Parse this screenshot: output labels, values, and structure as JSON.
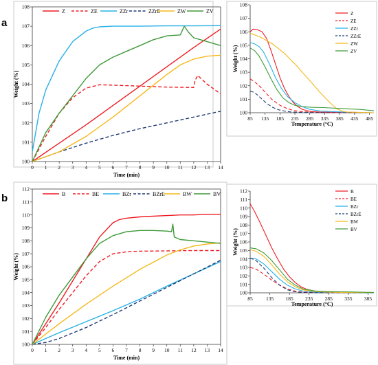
{
  "panels": {
    "a": "a",
    "b": "b"
  },
  "colors": {
    "red": "#ee1c24",
    "cyan": "#27b0e6",
    "navy": "#1f3a70",
    "yellow": "#f5b81a",
    "green": "#3e9a3a"
  },
  "chart_data": [
    {
      "id": "a_main",
      "type": "line",
      "xlabel": "Time (min)",
      "ylabel": "Weight (%)",
      "xlim": [
        0,
        14
      ],
      "ylim": [
        100,
        108
      ],
      "xticks": [
        "0",
        "1",
        "2",
        "3",
        "4",
        "5",
        "6",
        "7",
        "8",
        "9",
        "10",
        "11",
        "12",
        "13",
        "14"
      ],
      "yticks": [
        "100",
        "101",
        "102",
        "103",
        "104",
        "105",
        "106",
        "107",
        "108"
      ],
      "grid": false,
      "legend": "top",
      "series": [
        {
          "name": "Z",
          "color": "#ee1c24",
          "dash": "solid",
          "x": [
            0,
            2,
            4,
            6,
            8,
            10,
            12,
            14
          ],
          "y": [
            100,
            100.95,
            101.9,
            102.9,
            103.9,
            104.9,
            105.9,
            106.85
          ]
        },
        {
          "name": "ZE",
          "color": "#ee1c24",
          "dash": "dashed",
          "x": [
            0,
            1,
            2,
            3,
            4,
            5,
            6,
            8,
            10,
            12,
            12.1,
            12.3,
            13,
            14
          ],
          "y": [
            100,
            101.3,
            102.5,
            103.3,
            103.8,
            103.97,
            103.95,
            103.9,
            103.85,
            103.83,
            104.2,
            104.45,
            104.0,
            103.5
          ]
        },
        {
          "name": "ZZr",
          "color": "#27b0e6",
          "dash": "solid",
          "x": [
            0,
            0.5,
            1,
            2,
            3,
            4,
            4.5,
            5,
            6,
            8,
            10,
            12,
            14
          ],
          "y": [
            100.5,
            102.5,
            103.7,
            105.2,
            106.2,
            106.75,
            106.9,
            106.97,
            107,
            107,
            107.02,
            107.02,
            107.03
          ]
        },
        {
          "name": "ZZrE",
          "color": "#1f3a70",
          "dash": "dashed",
          "x": [
            0,
            2,
            4,
            6,
            8,
            10,
            12,
            14
          ],
          "y": [
            100,
            100.5,
            100.95,
            101.35,
            101.7,
            102.0,
            102.3,
            102.6
          ]
        },
        {
          "name": "ZW",
          "color": "#f5b81a",
          "dash": "solid",
          "x": [
            0,
            2,
            4,
            6,
            8,
            10,
            11,
            12,
            13,
            14
          ],
          "y": [
            100,
            100.5,
            101.3,
            102.3,
            103.4,
            104.5,
            105.0,
            105.3,
            105.45,
            105.5
          ]
        },
        {
          "name": "ZV",
          "color": "#3e9a3a",
          "dash": "solid",
          "x": [
            0,
            1,
            2,
            3,
            4,
            5,
            6,
            7,
            8,
            9,
            10,
            11,
            11.3,
            11.6,
            12,
            13,
            14
          ],
          "y": [
            100,
            101.5,
            102.5,
            103.4,
            104.3,
            105.0,
            105.4,
            105.7,
            106.0,
            106.3,
            106.5,
            106.55,
            107.0,
            106.7,
            106.4,
            106.2,
            106.0
          ]
        }
      ]
    },
    {
      "id": "a_inset",
      "type": "line",
      "xlabel": "Temperature (°C)",
      "ylabel": "Weight (%)",
      "xlim": [
        85,
        500
      ],
      "ylim": [
        100,
        108
      ],
      "xticks": [
        "85",
        "135",
        "185",
        "235",
        "285",
        "335",
        "385",
        "435",
        "485"
      ],
      "yticks": [
        "100",
        "101",
        "102",
        "103",
        "104",
        "105",
        "106",
        "107",
        "108"
      ],
      "grid": false,
      "legend": "right",
      "series": [
        {
          "name": "Z",
          "color": "#ee1c24",
          "dash": "solid",
          "x": [
            85,
            95,
            110,
            125,
            140,
            155,
            170,
            185,
            200,
            215,
            230,
            245,
            260,
            285,
            320,
            400,
            500
          ],
          "y": [
            106,
            106.2,
            106.15,
            106.0,
            105.5,
            104.6,
            103.6,
            102.6,
            101.8,
            101.2,
            100.75,
            100.45,
            100.25,
            100.1,
            100.05,
            100.02,
            100
          ]
        },
        {
          "name": "ZE",
          "color": "#ee1c24",
          "dash": "dashed",
          "x": [
            85,
            100,
            120,
            140,
            160,
            185,
            210,
            235,
            260,
            300,
            350,
            500
          ],
          "y": [
            102.5,
            102.3,
            101.9,
            101.4,
            100.95,
            100.55,
            100.3,
            100.15,
            100.08,
            100.03,
            100,
            100
          ]
        },
        {
          "name": "ZZr",
          "color": "#27b0e6",
          "dash": "solid",
          "x": [
            85,
            100,
            115,
            130,
            150,
            170,
            190,
            210,
            235,
            260,
            285,
            320,
            400,
            500
          ],
          "y": [
            105.2,
            105.1,
            104.9,
            104.5,
            103.6,
            102.6,
            101.8,
            101.2,
            100.75,
            100.45,
            100.25,
            100.12,
            100.05,
            100
          ]
        },
        {
          "name": "ZZrE",
          "color": "#1f3a70",
          "dash": "dashed",
          "x": [
            85,
            100,
            120,
            140,
            160,
            180,
            200,
            220,
            250,
            285,
            350,
            500
          ],
          "y": [
            101.6,
            101.5,
            101.1,
            100.7,
            100.4,
            100.22,
            100.12,
            100.06,
            100.03,
            100.01,
            100,
            100
          ]
        },
        {
          "name": "ZW",
          "color": "#f5b81a",
          "dash": "solid",
          "x": [
            85,
            120,
            160,
            200,
            240,
            280,
            320,
            350,
            375,
            395,
            410,
            500
          ],
          "y": [
            105.9,
            105.6,
            105.1,
            104.4,
            103.5,
            102.5,
            101.5,
            100.8,
            100.3,
            100.1,
            100.05,
            100
          ]
        },
        {
          "name": "ZV",
          "color": "#3e9a3a",
          "dash": "solid",
          "x": [
            85,
            100,
            115,
            135,
            155,
            175,
            195,
            215,
            235,
            260,
            290,
            330,
            400,
            450,
            500
          ],
          "y": [
            104.8,
            104.6,
            104.2,
            103.4,
            102.5,
            101.7,
            101.1,
            100.75,
            100.55,
            100.45,
            100.4,
            100.38,
            100.3,
            100.25,
            100.15
          ]
        }
      ]
    },
    {
      "id": "b_main",
      "type": "line",
      "xlabel": "Time (min)",
      "ylabel": "Weight (%)",
      "xlim": [
        0,
        14
      ],
      "ylim": [
        100,
        112
      ],
      "xticks": [
        "0",
        "1",
        "2",
        "3",
        "4",
        "5",
        "6",
        "7",
        "8",
        "9",
        "10",
        "11",
        "12",
        "13",
        "14"
      ],
      "yticks": [
        "100",
        "101",
        "102",
        "103",
        "104",
        "105",
        "106",
        "107",
        "108",
        "109",
        "110",
        "111",
        "112"
      ],
      "grid": false,
      "legend": "top",
      "series": [
        {
          "name": "B",
          "color": "#ee1c24",
          "dash": "solid",
          "x": [
            0,
            1,
            2,
            3,
            4,
            5,
            6,
            6.5,
            7,
            8,
            9,
            10,
            11,
            12,
            13,
            14
          ],
          "y": [
            100,
            101.6,
            103.2,
            104.9,
            106.6,
            108.3,
            109.4,
            109.65,
            109.75,
            109.85,
            109.9,
            109.95,
            110.0,
            110.0,
            110.05,
            110.05
          ]
        },
        {
          "name": "BE",
          "color": "#ee1c24",
          "dash": "dashed",
          "x": [
            0,
            1,
            2,
            3,
            4,
            5,
            6,
            7,
            8,
            10,
            12,
            14
          ],
          "y": [
            100,
            101.3,
            102.7,
            104.0,
            105.3,
            106.4,
            107.0,
            107.15,
            107.2,
            107.22,
            107.25,
            107.25
          ]
        },
        {
          "name": "BZr",
          "color": "#27b0e6",
          "dash": "solid",
          "x": [
            0,
            2,
            4,
            6,
            8,
            10,
            12,
            14
          ],
          "y": [
            100,
            100.9,
            101.75,
            102.6,
            103.5,
            104.5,
            105.45,
            106.4
          ]
        },
        {
          "name": "BZrE",
          "color": "#1f3a70",
          "dash": "dashed",
          "x": [
            0,
            1,
            2,
            4,
            6,
            8,
            10,
            12,
            14
          ],
          "y": [
            100,
            100.15,
            100.45,
            101.3,
            102.3,
            103.35,
            104.4,
            105.45,
            106.5
          ]
        },
        {
          "name": "BW",
          "color": "#f5b81a",
          "dash": "solid",
          "x": [
            0,
            2,
            4,
            6,
            8,
            10,
            11,
            12,
            13,
            14
          ],
          "y": [
            100,
            101.6,
            103.1,
            104.5,
            105.8,
            106.9,
            107.3,
            107.6,
            107.75,
            107.85
          ]
        },
        {
          "name": "BV",
          "color": "#3e9a3a",
          "dash": "solid",
          "x": [
            0,
            1,
            2,
            3,
            4,
            5,
            6,
            7,
            8,
            9,
            10,
            10.35,
            10.45,
            10.55,
            11,
            12,
            13,
            14
          ],
          "y": [
            100,
            102.1,
            103.8,
            105.2,
            106.6,
            107.8,
            108.4,
            108.7,
            108.8,
            108.8,
            108.75,
            108.7,
            109.3,
            108.3,
            108.1,
            108.0,
            107.9,
            107.8
          ]
        }
      ]
    },
    {
      "id": "b_inset",
      "type": "line",
      "xlabel": "Temperature (°C)",
      "ylabel": "Weight (%)",
      "xlim": [
        85,
        400
      ],
      "ylim": [
        100,
        112
      ],
      "xticks": [
        "85",
        "135",
        "185",
        "235",
        "285",
        "335",
        "385"
      ],
      "yticks": [
        "100",
        "101",
        "102",
        "103",
        "104",
        "105",
        "106",
        "107",
        "108",
        "109",
        "110",
        "111",
        "112"
      ],
      "grid": false,
      "legend": "right",
      "series": [
        {
          "name": "B",
          "color": "#ee1c24",
          "dash": "solid",
          "x": [
            85,
            95,
            110,
            125,
            140,
            155,
            170,
            185,
            200,
            215,
            230,
            250,
            280,
            320,
            400
          ],
          "y": [
            110.5,
            109.7,
            108.3,
            106.8,
            105.3,
            104.0,
            102.8,
            101.9,
            101.2,
            100.7,
            100.4,
            100.2,
            100.08,
            100.03,
            100
          ]
        },
        {
          "name": "BE",
          "color": "#ee1c24",
          "dash": "dashed",
          "x": [
            85,
            100,
            120,
            140,
            160,
            180,
            200,
            220,
            250,
            300,
            400
          ],
          "y": [
            103,
            102.8,
            102.2,
            101.5,
            100.9,
            100.45,
            100.2,
            100.08,
            100.03,
            100,
            100
          ]
        },
        {
          "name": "BZr",
          "color": "#27b0e6",
          "dash": "solid",
          "x": [
            85,
            100,
            120,
            140,
            160,
            180,
            200,
            220,
            250,
            300,
            350,
            400
          ],
          "y": [
            104.1,
            104.0,
            103.4,
            102.5,
            101.6,
            100.9,
            100.45,
            100.2,
            100.08,
            100.03,
            100.02,
            100
          ]
        },
        {
          "name": "BZrE",
          "color": "#1f3a70",
          "dash": "dashed",
          "x": [
            85,
            100,
            120,
            140,
            160,
            180,
            200,
            220,
            250,
            300,
            400
          ],
          "y": [
            104.1,
            103.8,
            102.9,
            101.8,
            100.9,
            100.35,
            100.12,
            100.04,
            100.01,
            100,
            100
          ]
        },
        {
          "name": "BW",
          "color": "#f5b81a",
          "dash": "solid",
          "x": [
            85,
            100,
            120,
            140,
            160,
            180,
            200,
            220,
            250,
            280,
            320,
            400
          ],
          "y": [
            105.1,
            104.9,
            104.3,
            103.3,
            102.2,
            101.3,
            100.7,
            100.35,
            100.15,
            100.08,
            100.05,
            100.03
          ]
        },
        {
          "name": "BV",
          "color": "#3e9a3a",
          "dash": "solid",
          "x": [
            85,
            100,
            120,
            140,
            160,
            180,
            200,
            220,
            250,
            280,
            320,
            350,
            400
          ],
          "y": [
            105.3,
            105.2,
            104.7,
            103.8,
            102.7,
            101.6,
            100.9,
            100.45,
            100.22,
            100.15,
            100.12,
            100.1,
            100.05
          ]
        }
      ]
    }
  ]
}
